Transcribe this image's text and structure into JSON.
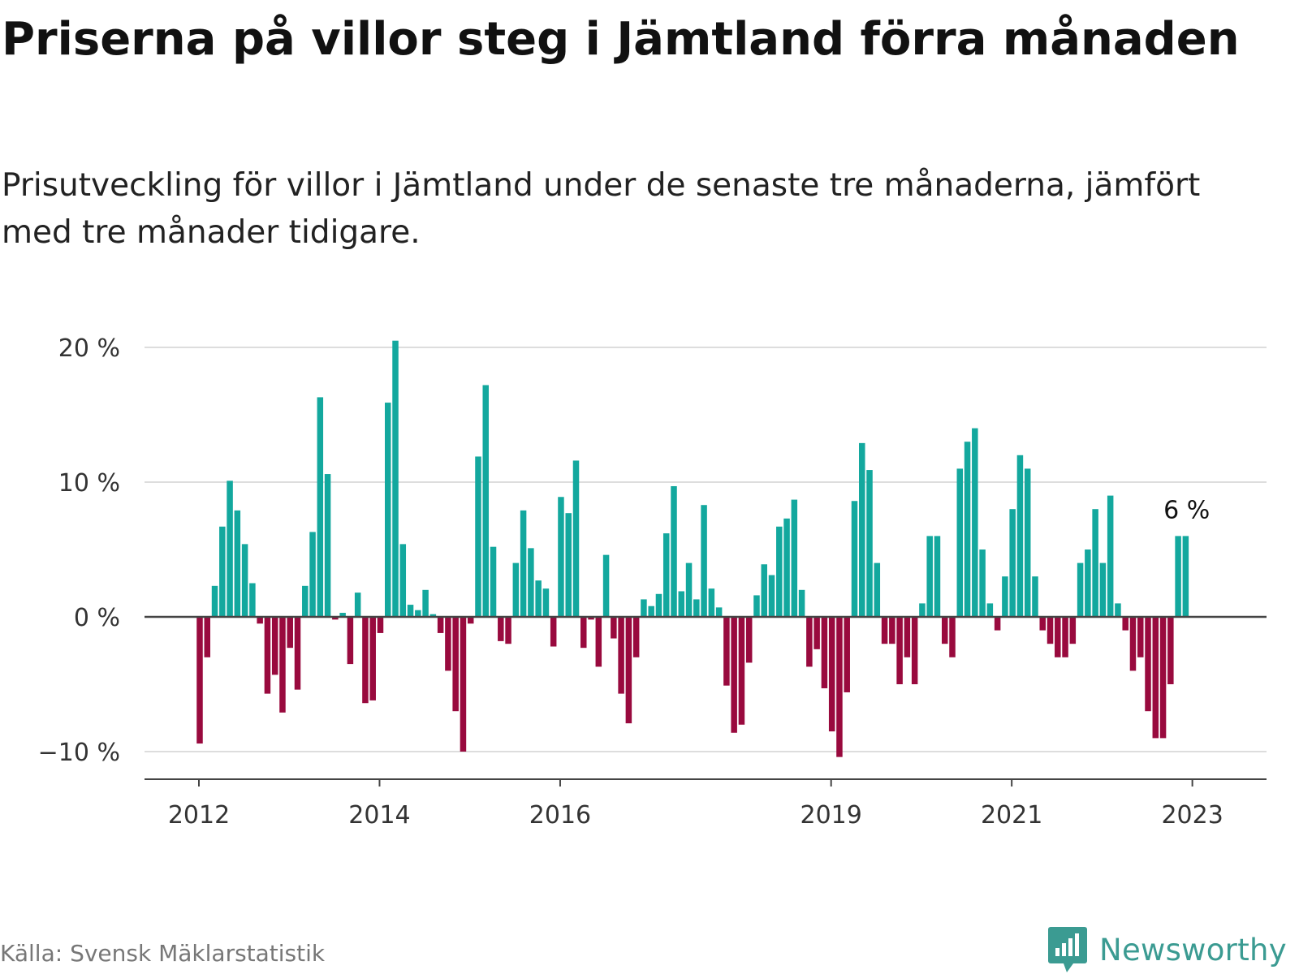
{
  "title": "Priserna på villor steg i Jämtland förra månaden",
  "subtitle": "Prisutveckling för villor i Jämtland under de senaste tre månaderna, jämfört med tre månader tidigare.",
  "source": "Källa: Svensk Mäklarstatistik",
  "brand": "Newsworthy",
  "colors": {
    "positive": "#13a89e",
    "negative": "#990a3e",
    "grid": "#dddddd",
    "axis": "#444444",
    "brand": "#3b9b92"
  },
  "chart_data": {
    "type": "bar",
    "ylabel": "",
    "xlabel": "",
    "ylim": [
      -12,
      20.5
    ],
    "y_ticks": [
      "20 %",
      "10 %",
      "0 %",
      "−10 %"
    ],
    "y_tick_values": [
      20,
      10,
      0,
      -10
    ],
    "x_ticks": [
      "2012",
      "2014",
      "2016",
      "2019",
      "2021",
      "2023"
    ],
    "x_tick_indices": [
      0,
      24,
      48,
      84,
      108,
      132
    ],
    "start": "2012-01",
    "annotation": "6 %",
    "values": [
      -9.4,
      -3.0,
      2.3,
      6.7,
      10.1,
      7.9,
      5.4,
      2.5,
      -0.5,
      -5.7,
      -4.3,
      -7.1,
      -2.3,
      -5.4,
      2.3,
      6.3,
      16.3,
      10.6,
      -0.2,
      0.3,
      -3.5,
      1.8,
      -6.4,
      -6.2,
      -1.2,
      15.9,
      20.5,
      5.4,
      0.9,
      0.5,
      2.0,
      0.2,
      -1.2,
      -4.0,
      -7.0,
      -10.0,
      -0.5,
      11.9,
      17.2,
      5.2,
      -1.8,
      -2.0,
      4.0,
      7.9,
      5.1,
      2.7,
      2.1,
      -2.2,
      8.9,
      7.7,
      11.6,
      -2.3,
      -0.2,
      -3.7,
      4.6,
      -1.6,
      -5.7,
      -7.9,
      -3.0,
      1.3,
      0.8,
      1.7,
      6.2,
      9.7,
      1.9,
      4.0,
      1.3,
      8.3,
      2.1,
      0.7,
      -5.1,
      -8.6,
      -8.0,
      -3.4,
      1.6,
      3.9,
      3.1,
      6.7,
      7.3,
      8.7,
      2.0,
      -3.7,
      -2.4,
      -5.3,
      -8.5,
      -10.4,
      -5.6,
      8.6,
      12.9,
      10.9,
      4.0,
      -2.0,
      -2.0,
      -5.0,
      -3.0,
      -5.0,
      1.0,
      6.0,
      6.0,
      -2.0,
      -3.0,
      11.0,
      13.0,
      14.0,
      5.0,
      1.0,
      -1.0,
      3.0,
      8.0,
      12.0,
      11.0,
      3.0,
      -1.0,
      -2.0,
      -3.0,
      -3.0,
      -2.0,
      4.0,
      5.0,
      8.0,
      4.0,
      9.0,
      1.0,
      -1.0,
      -4.0,
      -3.0,
      -7.0,
      -9.0,
      -9.0,
      -5.0,
      6.0,
      6.0
    ]
  }
}
